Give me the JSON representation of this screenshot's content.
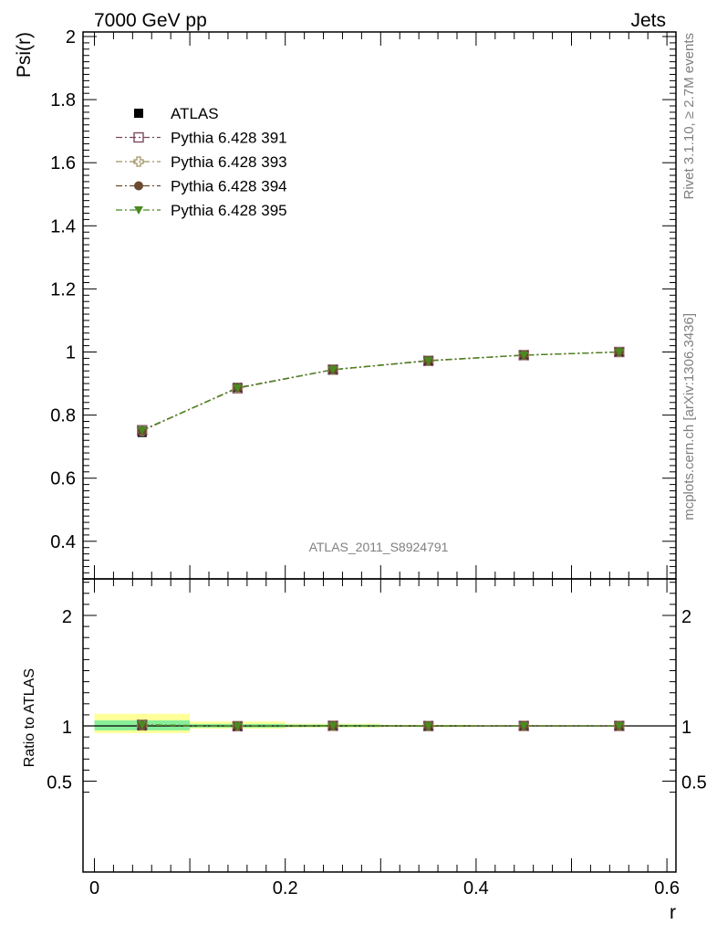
{
  "header": {
    "left": "7000 GeV pp",
    "right": "Jets"
  },
  "side_text": {
    "top": "Rivet 3.1.10, ≥ 2.7M events",
    "bottom": "mcplots.cern.ch [arXiv:1306.3436]"
  },
  "analysis_label": "ATLAS_2011_S8924791",
  "chart_data": [
    {
      "type": "scatter",
      "panel": "main",
      "ylabel": "Psi(r)",
      "xlim": [
        0,
        0.6
      ],
      "ylim": [
        0.28,
        2.0
      ],
      "yticks": [
        0.4,
        0.6,
        0.8,
        1,
        1.2,
        1.4,
        1.6,
        1.8,
        2
      ],
      "ytick_labels": [
        "0.4",
        "0.6",
        "0.8",
        "1",
        "1.2",
        "1.4",
        "1.6",
        "1.8",
        "2"
      ],
      "x": [
        0.05,
        0.15,
        0.25,
        0.35,
        0.45,
        0.55
      ],
      "legend_placement": "top-left",
      "series": [
        {
          "name": "ATLAS",
          "marker": "square-filled",
          "color": "#000000",
          "values": [
            0.745,
            0.888,
            0.943,
            0.973,
            0.99,
            1.0
          ]
        },
        {
          "name": "Pythia 6.428 391",
          "marker": "square-open",
          "color": "#7a4a60",
          "line": "dash-dot",
          "values": [
            0.752,
            0.885,
            0.944,
            0.972,
            0.99,
            1.0
          ]
        },
        {
          "name": "Pythia 6.428 393",
          "marker": "cross-open",
          "color": "#a09060",
          "line": "dash-dot",
          "values": [
            0.75,
            0.886,
            0.944,
            0.972,
            0.99,
            1.0
          ]
        },
        {
          "name": "Pythia 6.428 394",
          "marker": "circle-filled",
          "color": "#6a4a30",
          "line": "dash-dot",
          "values": [
            0.751,
            0.887,
            0.944,
            0.973,
            0.99,
            1.0
          ]
        },
        {
          "name": "Pythia 6.428 395",
          "marker": "triangle-down-filled",
          "color": "#4a8a20",
          "line": "dash-dot",
          "values": [
            0.752,
            0.886,
            0.944,
            0.972,
            0.99,
            1.0
          ]
        }
      ]
    },
    {
      "type": "scatter",
      "panel": "ratio",
      "ylabel": "Ratio to ATLAS",
      "xlabel": "r",
      "xlim": [
        0,
        0.6
      ],
      "ylim": [
        0.37,
        2.3
      ],
      "yticks": [
        0.5,
        1,
        2
      ],
      "ytick_labels": [
        "0.5",
        "1",
        "2"
      ],
      "xticks": [
        0,
        0.2,
        0.4,
        0.6
      ],
      "xtick_labels": [
        "0",
        "0.2",
        "0.4",
        "0.6"
      ],
      "x": [
        0.05,
        0.15,
        0.25,
        0.35,
        0.45,
        0.55
      ],
      "bin_edges": [
        0,
        0.1,
        0.2,
        0.3,
        0.4,
        0.5,
        0.6
      ],
      "band_inner": [
        [
          0.96,
          1.05
        ],
        [
          0.985,
          1.018
        ],
        [
          0.99,
          1.012
        ],
        [
          0.995,
          1.006
        ],
        [
          0.997,
          1.004
        ],
        [
          0.999,
          1.001
        ]
      ],
      "band_outer": [
        [
          0.935,
          1.11
        ],
        [
          0.975,
          1.04
        ],
        [
          0.985,
          1.02
        ],
        [
          0.99,
          1.01
        ],
        [
          0.995,
          1.006
        ],
        [
          0.998,
          1.002
        ]
      ],
      "series": [
        {
          "name": "ATLAS",
          "values": [
            1,
            1,
            1,
            1,
            1,
            1
          ]
        },
        {
          "name": "Pythia 6.428 391",
          "values": [
            1.01,
            0.997,
            1.001,
            0.999,
            1.0,
            1.0
          ]
        },
        {
          "name": "Pythia 6.428 393",
          "values": [
            1.007,
            0.998,
            1.001,
            0.999,
            1.0,
            1.0
          ]
        },
        {
          "name": "Pythia 6.428 394",
          "values": [
            1.008,
            0.999,
            1.001,
            1.0,
            1.0,
            1.0
          ]
        },
        {
          "name": "Pythia 6.428 395",
          "values": [
            1.01,
            0.998,
            1.001,
            0.999,
            1.0,
            1.0
          ]
        }
      ]
    }
  ]
}
